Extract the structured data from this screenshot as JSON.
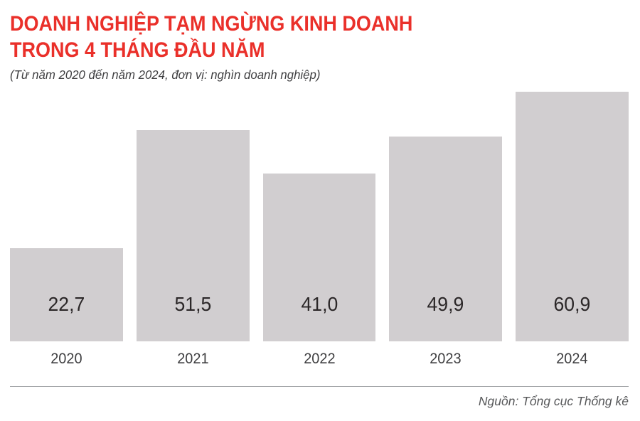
{
  "header": {
    "title_line1": "DOANH NGHIỆP TẠM NGỪNG KINH DOANH",
    "title_line2": "TRONG 4 THÁNG ĐẦU NĂM",
    "subtitle": "(Từ năm 2020 đến năm 2024, đơn vị: nghìn doanh nghiệp)"
  },
  "chart_data": {
    "type": "bar",
    "categories": [
      "2020",
      "2021",
      "2022",
      "2023",
      "2024"
    ],
    "values": [
      22.7,
      51.5,
      41.0,
      49.9,
      60.9
    ],
    "value_labels": [
      "22,7",
      "51,5",
      "41,0",
      "49,9",
      "60,9"
    ],
    "title": "Doanh nghiệp tạm ngừng kinh doanh trong 4 tháng đầu năm",
    "xlabel": "",
    "ylabel": "nghìn doanh nghiệp",
    "ylim": [
      0,
      60.9
    ],
    "grid": false,
    "legend": "none",
    "bar_color": "#d1ced0",
    "value_label_position": "inside-bottom"
  },
  "footer": {
    "source": "Nguồn: Tổng cục Thống kê"
  },
  "colors": {
    "title_red": "#ea302a",
    "bar_gray": "#d1ced0",
    "value_text": "#2b2728",
    "axis_text": "#3f3f41",
    "source_text": "#57585a",
    "divider": "#a5a7aa",
    "background": "#ffffff"
  }
}
